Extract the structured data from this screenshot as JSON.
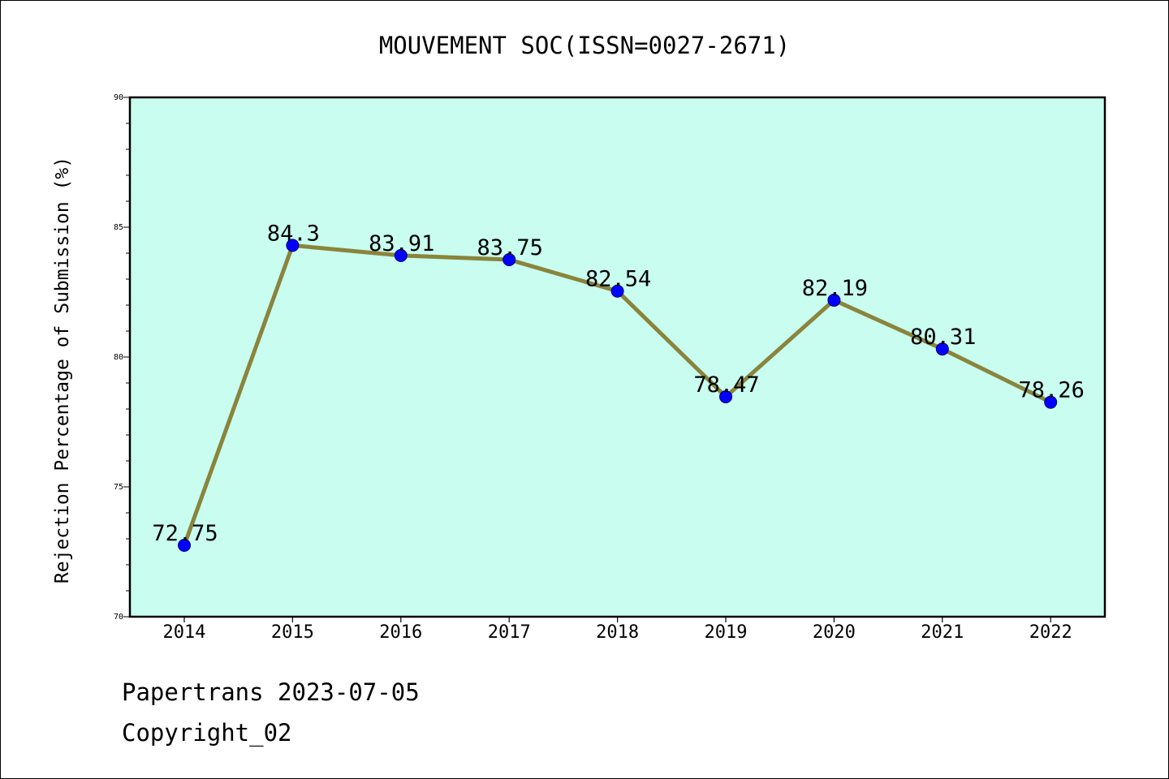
{
  "chart_data": {
    "type": "line",
    "title": "MOUVEMENT SOC(ISSN=0027-2671)",
    "xlabel": "",
    "ylabel": "Rejection Percentage of Submission (%)",
    "x": [
      "2014",
      "2015",
      "2016",
      "2017",
      "2018",
      "2019",
      "2020",
      "2021",
      "2022"
    ],
    "series": [
      {
        "values": [
          72.75,
          84.3,
          83.91,
          83.75,
          82.54,
          78.47,
          82.19,
          80.31,
          78.26
        ],
        "labels": [
          "72.75",
          "84.3",
          "83.91",
          "83.75",
          "82.54",
          "78.47",
          "82.19",
          "80.31",
          "78.26"
        ]
      }
    ],
    "ylim": [
      70,
      90
    ],
    "yticks": [
      "70",
      "75",
      "80",
      "85",
      "90"
    ],
    "grid": false,
    "colors": {
      "plot_background": "#c8fdef",
      "line": "#8a843c",
      "marker": "#0000ff"
    }
  },
  "footer": {
    "line1": "Papertrans 2023-07-05",
    "line2": "Copyright_02"
  }
}
